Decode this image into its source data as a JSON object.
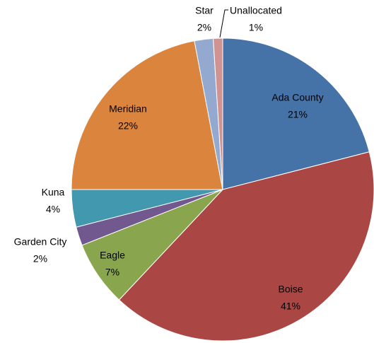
{
  "chart_data": {
    "type": "pie",
    "categories": [
      "Ada County",
      "Boise",
      "Eagle",
      "Garden City",
      "Kuna",
      "Meridian",
      "Star",
      "Unallocated"
    ],
    "values": [
      21,
      41,
      7,
      2,
      4,
      22,
      2,
      1
    ],
    "value_labels": [
      "21%",
      "41%",
      "7%",
      "2%",
      "4%",
      "22%",
      "2%",
      "1%"
    ],
    "colors": [
      "#4572a7",
      "#aa4643",
      "#89a54e",
      "#71588f",
      "#4198af",
      "#db843d",
      "#93a9cf",
      "#d19392"
    ]
  }
}
